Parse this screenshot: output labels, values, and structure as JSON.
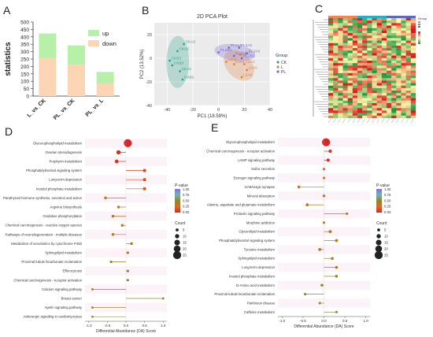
{
  "panels": {
    "A": "A",
    "B": "B",
    "C": "C",
    "D": "D",
    "E": "E"
  },
  "chart_data": [
    {
      "panel": "A",
      "type": "bar",
      "stacked": true,
      "categories": [
        "L_vs_CK",
        "PL_vs_CK",
        "PL_vs_L"
      ],
      "series": [
        {
          "name": "down",
          "values": [
            258,
            212,
            85
          ],
          "color": "#fcd5b4"
        },
        {
          "name": "up",
          "values": [
            165,
            130,
            78
          ],
          "color": "#b7f0a8"
        }
      ],
      "ylabel": "statistics",
      "ylim": [
        0,
        500
      ],
      "yticks": [
        0,
        50,
        100,
        150,
        200,
        250,
        300,
        350,
        400,
        450,
        500
      ],
      "legend": "top-right"
    },
    {
      "panel": "B",
      "type": "scatter",
      "title": "2D PCA Plot",
      "xlabel": "PC1 (18.59%)",
      "ylabel": "PC2 (13.52%)",
      "xlim": [
        -50,
        40
      ],
      "ylim": [
        -40,
        30
      ],
      "xticks": [
        -40,
        -20,
        0,
        20,
        40
      ],
      "yticks": [
        -40,
        -20,
        0,
        20
      ],
      "legend_title": "Group",
      "series": [
        {
          "name": "CK",
          "color": "#2ca58d",
          "points": [
            {
              "x": -27,
              "y": 12,
              "label": "CKA3"
            },
            {
              "x": -32,
              "y": 6,
              "label": "CKA2"
            },
            {
              "x": -38,
              "y": -2,
              "label": "CKB3"
            },
            {
              "x": -36,
              "y": -6,
              "label": "CKB2"
            },
            {
              "x": -30,
              "y": -11,
              "label": "CKA1"
            },
            {
              "x": -28,
              "y": -18,
              "label": "CKB1"
            }
          ]
        },
        {
          "name": "L",
          "color": "#e4803c",
          "points": [
            {
              "x": 17,
              "y": 3,
              "label": "L2A1"
            },
            {
              "x": 6,
              "y": -3,
              "label": "L2A3"
            },
            {
              "x": 12,
              "y": -5,
              "label": "L2A2"
            },
            {
              "x": 20,
              "y": -5,
              "label": "L2A4"
            },
            {
              "x": 22,
              "y": -10,
              "label": "L2A5"
            },
            {
              "x": 18,
              "y": -16,
              "label": "L2A6"
            }
          ]
        },
        {
          "name": "PL",
          "color": "#7b68c8",
          "points": [
            {
              "x": 8,
              "y": 9,
              "label": "PL1A1"
            },
            {
              "x": 16,
              "y": 9,
              "label": "PL2A2"
            },
            {
              "x": 0,
              "y": 5,
              "label": "PL1B3"
            },
            {
              "x": 12,
              "y": 2,
              "label": "PL1A4"
            },
            {
              "x": 22,
              "y": 4,
              "label": "PL2A3"
            },
            {
              "x": 18,
              "y": 0,
              "label": "PL2B1"
            }
          ]
        }
      ]
    },
    {
      "panel": "C",
      "type": "heatmap",
      "legend_title": "Group",
      "group_colors": [
        "#ff7f50",
        "#1fb2c8",
        "#5b6abf"
      ],
      "color_scale": [
        "#1a9641",
        "#fff7a8",
        "#d7191c"
      ]
    },
    {
      "panel": "D",
      "type": "scatter",
      "subtype": "lollipop",
      "xlabel": "Differential Abundance (DA) Score",
      "xlim": [
        -1.1,
        1.1
      ],
      "xticks": [
        -1.0,
        -0.5,
        0.0,
        0.5,
        1.0
      ],
      "size_legend": {
        "title": "Count",
        "values": [
          5,
          10,
          15,
          20,
          25
        ]
      },
      "color_legend": {
        "title": "P-value",
        "values": [
          "1.00",
          "0.75",
          "0.50",
          "0.25",
          "0.00"
        ]
      },
      "pathways": [
        {
          "name": "Glycerophospholipid metabolism",
          "score": 0.05,
          "count": 25,
          "p": 0.0
        },
        {
          "name": "Ovarian steroidogenesis",
          "score": -0.2,
          "count": 10,
          "p": 0.02
        },
        {
          "name": "Porphyrin metabolism",
          "score": -0.25,
          "count": 8,
          "p": 0.03
        },
        {
          "name": "Phosphatidylinositol signaling system",
          "score": 0.5,
          "count": 6,
          "p": 0.12
        },
        {
          "name": "Long-term depression",
          "score": 0.5,
          "count": 6,
          "p": 0.15
        },
        {
          "name": "Inositol phosphate metabolism",
          "score": 0.5,
          "count": 6,
          "p": 0.18
        },
        {
          "name": "Parathyroid hormone synthesis, secretion and action",
          "score": -0.55,
          "count": 4,
          "p": 0.3
        },
        {
          "name": "Arginine biosynthesis",
          "score": -0.2,
          "count": 4,
          "p": 0.32
        },
        {
          "name": "Oxidative phosphorylation",
          "score": -0.35,
          "count": 4,
          "p": 0.34
        },
        {
          "name": "Chemical carcinogenesis - reactive oxygen species",
          "score": -0.1,
          "count": 4,
          "p": 0.36
        },
        {
          "name": "Pathways of neurodegeneration - multiple diseases",
          "score": -0.35,
          "count": 4,
          "p": 0.38
        },
        {
          "name": "Metabolism of xenobiotics by cytochrome P450",
          "score": 0.15,
          "count": 4,
          "p": 0.4
        },
        {
          "name": "Sphingolipid metabolism",
          "score": 0.05,
          "count": 3,
          "p": 0.42
        },
        {
          "name": "Proximal tubule bicarbonate reclamation",
          "score": -0.4,
          "count": 3,
          "p": 0.44
        },
        {
          "name": "Efferocytosis",
          "score": 0.05,
          "count": 3,
          "p": 0.46
        },
        {
          "name": "Chemical carcinogenesis - receptor activation",
          "score": 0.05,
          "count": 3,
          "p": 0.48
        },
        {
          "name": "Calcium signaling pathway",
          "score": -0.9,
          "count": 2,
          "p": 0.5
        },
        {
          "name": "Breast cancer",
          "score": 1.0,
          "count": 2,
          "p": 0.52
        },
        {
          "name": "Apelin signaling pathway",
          "score": -0.9,
          "count": 2,
          "p": 0.55
        },
        {
          "name": "Adrenergic signaling in cardiomyocytes",
          "score": -0.9,
          "count": 2,
          "p": 0.58
        }
      ]
    },
    {
      "panel": "E",
      "type": "scatter",
      "subtype": "lollipop",
      "xlabel": "Differential Abundance (DA) Score",
      "xlim": [
        -1.1,
        1.1
      ],
      "xticks": [
        -1.0,
        -0.5,
        0.0,
        0.5,
        1.0
      ],
      "size_legend": {
        "title": "Count",
        "values": [
          5,
          10,
          15,
          20,
          25
        ]
      },
      "color_legend": {
        "title": "P-value",
        "values": [
          "1.00",
          "0.75",
          "0.50",
          "0.25",
          "0.00"
        ]
      },
      "pathways": [
        {
          "name": "Glycerophospholipid metabolism",
          "score": 0.05,
          "count": 25,
          "p": 0.0
        },
        {
          "name": "Chemical carcinogenesis - receptor activation",
          "score": 0.15,
          "count": 6,
          "p": 0.02
        },
        {
          "name": "cAMP signaling pathway",
          "score": 0.1,
          "count": 6,
          "p": 0.03
        },
        {
          "name": "Sulfur secretion",
          "score": 0.0,
          "count": 3,
          "p": 0.2
        },
        {
          "name": "Estrogen signaling pathway",
          "score": 0.0,
          "count": 3,
          "p": 0.25
        },
        {
          "name": "GABAergic synapse",
          "score": -0.6,
          "count": 4,
          "p": 0.3
        },
        {
          "name": "Mineral absorption",
          "score": 0.0,
          "count": 4,
          "p": 0.32
        },
        {
          "name": "Alanine, aspartate and glutamate metabolism",
          "score": -0.4,
          "count": 5,
          "p": 0.34
        },
        {
          "name": "Prolactin signaling pathway",
          "score": 0.55,
          "count": 3,
          "p": 0.36
        },
        {
          "name": "Morphine addiction",
          "score": 0.0,
          "count": 3,
          "p": 0.38
        },
        {
          "name": "Glycerolipid metabolism",
          "score": 0.15,
          "count": 5,
          "p": 0.4
        },
        {
          "name": "Phosphatidylinositol signaling system",
          "score": 0.3,
          "count": 5,
          "p": 0.42
        },
        {
          "name": "Tyrosine metabolism",
          "score": -0.1,
          "count": 5,
          "p": 0.44
        },
        {
          "name": "Sphingolipid metabolism",
          "score": 0.2,
          "count": 4,
          "p": 0.46
        },
        {
          "name": "Long-term depression",
          "score": 0.3,
          "count": 4,
          "p": 0.48
        },
        {
          "name": "Inositol phosphate metabolism",
          "score": 0.3,
          "count": 4,
          "p": 0.5
        },
        {
          "name": "D-Amino acid metabolism",
          "score": -0.05,
          "count": 4,
          "p": 0.52
        },
        {
          "name": "Proximal tubule bicarbonate reclamation",
          "score": -0.45,
          "count": 3,
          "p": 0.54
        },
        {
          "name": "Parkinson disease",
          "score": -0.1,
          "count": 3,
          "p": 0.56
        },
        {
          "name": "Caffeine metabolism",
          "score": 0.3,
          "count": 3,
          "p": 0.58
        }
      ]
    }
  ]
}
